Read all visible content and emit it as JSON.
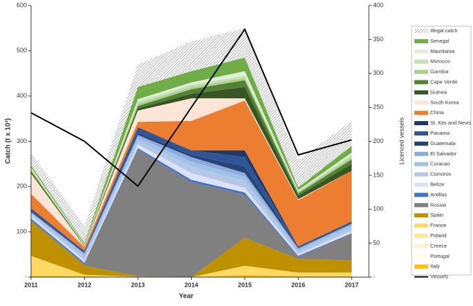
{
  "chart_data": {
    "type": "area",
    "stacked": true,
    "xlabel": "Year",
    "ylabel": "Catch (t x 10³)",
    "y2label": "Licenced vessels",
    "categories": [
      "2011",
      "2012",
      "2013",
      "2014",
      "2015",
      "2016",
      "2017"
    ],
    "ylim": [
      0,
      600
    ],
    "yticks": [
      {
        "value": 0,
        "label": "-"
      },
      100,
      200,
      300,
      400,
      500,
      600
    ],
    "y2lim": [
      0,
      400
    ],
    "y2ticks": [
      {
        "value": 0,
        "label": "-"
      },
      50,
      100,
      150,
      200,
      250,
      300,
      350,
      400
    ],
    "grid": false,
    "legend": "right",
    "series": [
      {
        "name": "Illegal catch",
        "color": "#7f7f7f",
        "pattern": "hatch",
        "values": [
          28,
          36,
          50,
          65,
          65,
          60,
          55
        ]
      },
      {
        "name": "Senegal",
        "color": "#70ad47",
        "values": [
          4,
          3,
          27,
          25,
          30,
          6,
          15
        ]
      },
      {
        "name": "Mauritania",
        "color": "#e2efd9",
        "values": [
          2,
          1,
          5,
          5,
          10,
          2,
          5
        ]
      },
      {
        "name": "Morocco",
        "color": "#c5e0b3",
        "values": [
          3,
          1,
          5,
          5,
          5,
          2,
          5
        ]
      },
      {
        "name": "Gambia",
        "color": "#a9d18e",
        "values": [
          3,
          1,
          5,
          5,
          5,
          3,
          5
        ]
      },
      {
        "name": "Cape Verde",
        "color": "#548235",
        "values": [
          3,
          1,
          5,
          10,
          15,
          5,
          10
        ]
      },
      {
        "name": "Guinea",
        "color": "#375623",
        "values": [
          3,
          1,
          5,
          10,
          25,
          8,
          15
        ]
      },
      {
        "name": "South Korea",
        "color": "#fbe5d6",
        "values": [
          45,
          2,
          25,
          50,
          5,
          2,
          0
        ]
      },
      {
        "name": "China",
        "color": "#ed7d31",
        "values": [
          32,
          8,
          12,
          65,
          110,
          102,
          112
        ]
      },
      {
        "name": "St. Kits and Nevis",
        "color": "#1f3864",
        "values": [
          0,
          0,
          2,
          0,
          15,
          0,
          0
        ]
      },
      {
        "name": "Panama",
        "color": "#2f5597",
        "values": [
          6,
          3,
          10,
          10,
          20,
          2,
          3
        ]
      },
      {
        "name": "Guatemala",
        "color": "#264478",
        "values": [
          2,
          2,
          5,
          5,
          15,
          2,
          2
        ]
      },
      {
        "name": "El Salvador",
        "color": "#8faadc",
        "values": [
          2,
          3,
          5,
          10,
          8,
          3,
          3
        ]
      },
      {
        "name": "Curacao",
        "color": "#9dc3e6",
        "values": [
          2,
          5,
          8,
          10,
          10,
          5,
          5
        ]
      },
      {
        "name": "Comoros",
        "color": "#b4c7e7",
        "values": [
          5,
          8,
          8,
          15,
          15,
          5,
          8
        ]
      },
      {
        "name": "Belize",
        "color": "#dae3f3",
        "values": [
          5,
          5,
          8,
          15,
          10,
          4,
          5
        ]
      },
      {
        "name": "Antillas",
        "color": "#4472c4",
        "values": [
          2,
          2,
          3,
          5,
          5,
          2,
          2
        ]
      },
      {
        "name": "Russia",
        "color": "#808080",
        "values": [
          5,
          5,
          280,
          210,
          95,
          5,
          58
        ]
      },
      {
        "name": "Spain",
        "color": "#bf9000",
        "values": [
          76,
          20,
          1,
          0,
          62,
          30,
          27
        ]
      },
      {
        "name": "France",
        "color": "#ffd966",
        "values": [
          44,
          3,
          1,
          0,
          20,
          8,
          8
        ]
      },
      {
        "name": "Poland",
        "color": "#ffe699",
        "values": [
          0,
          0,
          0,
          0,
          0,
          0,
          0
        ]
      },
      {
        "name": "Creece",
        "color": "#fff2cc",
        "values": [
          0,
          0,
          0,
          0,
          0,
          0,
          0
        ]
      },
      {
        "name": "Portugal",
        "color": "#fffbe6",
        "values": [
          0,
          0,
          0,
          0,
          0,
          0,
          0
        ]
      },
      {
        "name": "Italy",
        "color": "#ffc000",
        "values": [
          3,
          2,
          0,
          0,
          5,
          2,
          2
        ]
      },
      {
        "name": "Vessels",
        "color": "#000000",
        "type": "line",
        "axis": "y2",
        "values": [
          242,
          200,
          134,
          250,
          365,
          180,
          202
        ]
      }
    ]
  }
}
